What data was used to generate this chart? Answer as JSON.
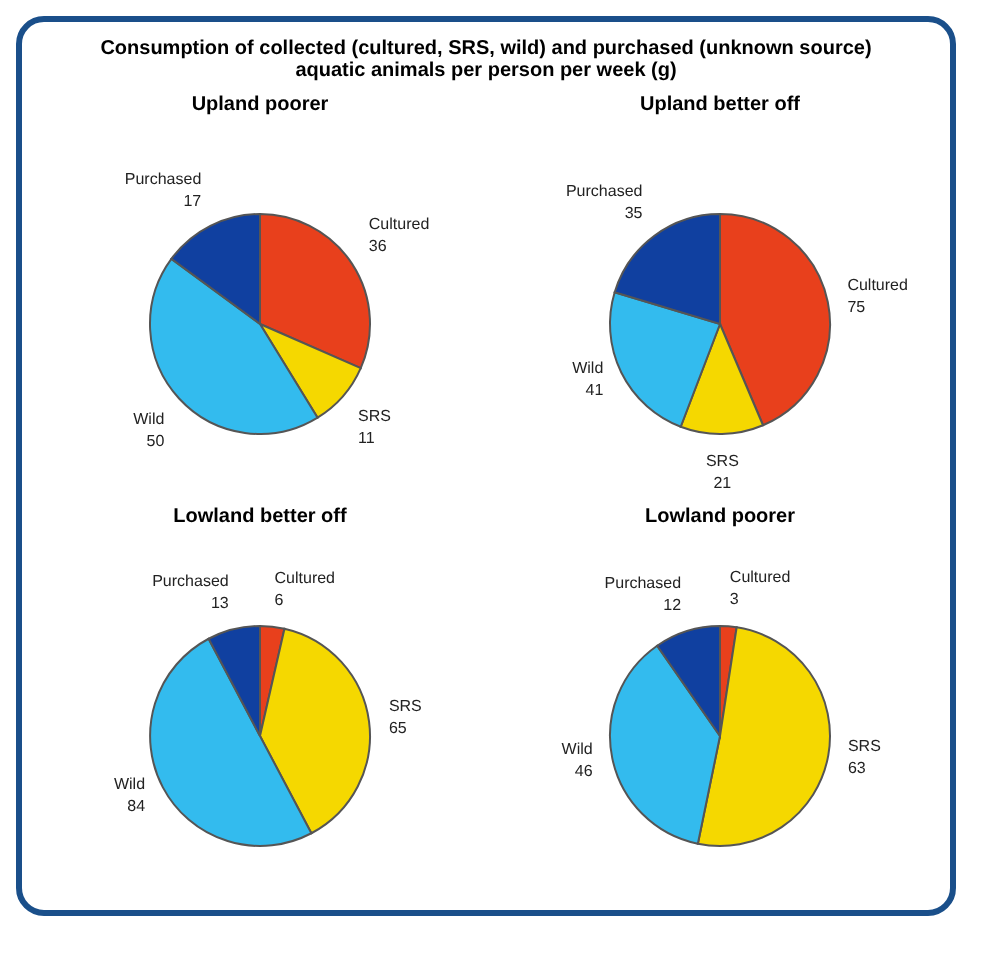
{
  "chart_data": [
    {
      "type": "pie",
      "title": "Upland poorer",
      "annotations": [
        "Consumption of collected (cultured, SRS, wild) and purchased (unknown source) aquatic animals per person per week (g)"
      ],
      "categories": [
        "Cultured",
        "SRS",
        "Wild",
        "Purchased"
      ],
      "values": [
        36,
        11,
        50,
        17
      ],
      "colors": [
        "#e8401c",
        "#f5d800",
        "#33bbee",
        "#1040a0"
      ],
      "data_labels": true
    },
    {
      "type": "pie",
      "title": "Upland better off",
      "categories": [
        "Cultured",
        "SRS",
        "Wild",
        "Purchased"
      ],
      "values": [
        75,
        21,
        41,
        35
      ],
      "colors": [
        "#e8401c",
        "#f5d800",
        "#33bbee",
        "#1040a0"
      ],
      "data_labels": true
    },
    {
      "type": "pie",
      "title": "Lowland better off",
      "categories": [
        "Cultured",
        "SRS",
        "Wild",
        "Purchased"
      ],
      "values": [
        6,
        65,
        84,
        13
      ],
      "colors": [
        "#e8401c",
        "#f5d800",
        "#33bbee",
        "#1040a0"
      ],
      "data_labels": true
    },
    {
      "type": "pie",
      "title": "Lowland poorer",
      "categories": [
        "Cultured",
        "SRS",
        "Wild",
        "Purchased"
      ],
      "values": [
        3,
        63,
        46,
        12
      ],
      "colors": [
        "#e8401c",
        "#f5d800",
        "#33bbee",
        "#1040a0"
      ],
      "data_labels": true
    }
  ]
}
